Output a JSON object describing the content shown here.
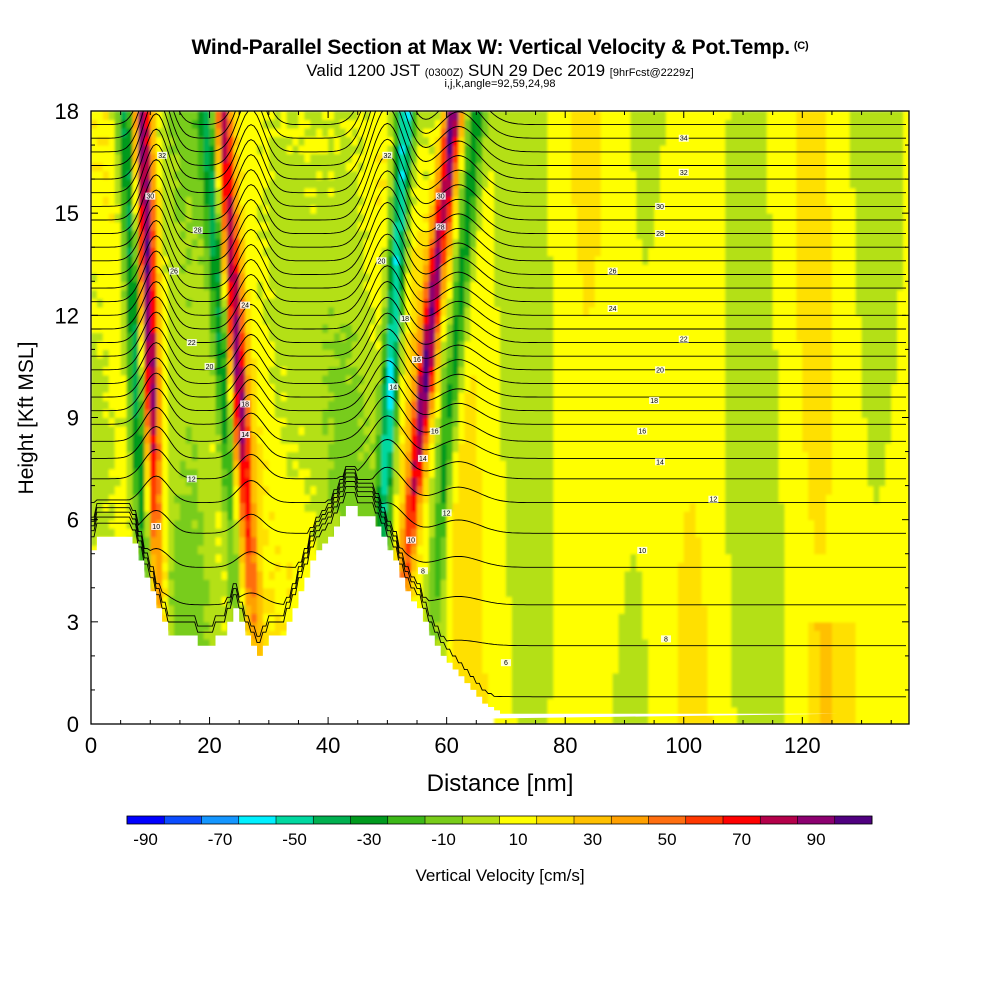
{
  "header": {
    "title": "Wind-Parallel Section at Max W: Vertical Velocity & Pot.Temp.",
    "title_mark": "(C)",
    "valid_prefix": "Valid 1200 JST",
    "valid_utc": "(0300Z)",
    "valid_date": "SUN 29 Dec 2019",
    "forecast": "[9hrFcst@2229z]",
    "params": "i,j,k,angle=92,59,24,98"
  },
  "chart_data": {
    "type": "heatmap",
    "title": "Wind-Parallel Section at Max W: Vertical Velocity & Pot.Temp.",
    "xlabel": "Distance [nm]",
    "ylabel": "Height [Kft MSL]",
    "xlim": [
      0,
      138
    ],
    "ylim": [
      0,
      18
    ],
    "x_ticks": [
      0,
      20,
      40,
      60,
      80,
      100,
      120
    ],
    "y_ticks": [
      0,
      3,
      6,
      9,
      12,
      15,
      18
    ],
    "terrain": {
      "x": [
        0,
        1,
        1,
        3,
        3,
        5,
        5,
        6,
        6,
        7,
        7,
        8,
        8,
        9,
        9,
        10,
        10,
        11,
        11,
        12,
        12,
        13,
        13,
        14,
        14,
        18,
        18,
        20,
        20,
        21,
        21,
        23,
        23,
        24,
        24,
        25,
        25,
        26,
        26,
        27,
        27,
        28,
        28,
        29,
        29,
        30,
        30,
        31,
        31,
        33,
        33,
        34,
        34,
        35,
        35,
        36,
        36,
        37,
        37,
        38,
        38,
        39,
        39,
        40,
        40,
        41,
        41,
        42,
        42,
        43,
        43,
        44,
        44,
        45,
        45,
        46,
        46,
        48,
        48,
        49,
        49,
        50,
        50,
        51,
        51,
        52,
        52,
        53,
        53,
        54,
        54,
        55,
        55,
        56,
        56,
        57,
        57,
        58,
        58,
        59,
        59,
        60,
        60,
        61,
        61,
        62,
        62,
        63,
        63,
        64,
        64,
        65,
        65,
        66,
        66,
        67,
        67,
        68,
        68,
        69,
        69,
        70,
        70,
        122,
        122,
        124,
        124,
        125,
        125,
        126,
        126,
        138
      ],
      "y": [
        5.1,
        5.1,
        5.5,
        5.5,
        5.5,
        5.5,
        5.5,
        5.5,
        5.5,
        5.5,
        5.3,
        5.3,
        4.8,
        4.8,
        4.3,
        4.3,
        3.9,
        3.9,
        3.4,
        3.4,
        3.0,
        3.0,
        2.6,
        2.6,
        2.6,
        2.6,
        2.3,
        2.3,
        2.3,
        2.3,
        2.6,
        2.6,
        3.0,
        3.0,
        3.4,
        3.4,
        3.0,
        3.0,
        2.6,
        2.6,
        2.3,
        2.3,
        2.0,
        2.0,
        2.3,
        2.3,
        2.6,
        2.6,
        2.6,
        2.6,
        3.0,
        3.0,
        3.4,
        3.4,
        3.9,
        3.9,
        4.3,
        4.3,
        4.8,
        4.8,
        5.1,
        5.1,
        5.3,
        5.3,
        5.5,
        5.5,
        5.8,
        5.8,
        6.1,
        6.1,
        6.4,
        6.4,
        6.4,
        6.4,
        6.1,
        6.1,
        6.1,
        6.1,
        5.8,
        5.8,
        5.5,
        5.5,
        5.1,
        5.1,
        4.8,
        4.8,
        4.3,
        4.3,
        3.9,
        3.9,
        3.6,
        3.6,
        3.4,
        3.4,
        3.0,
        3.0,
        2.6,
        2.6,
        2.3,
        2.3,
        2.0,
        2.0,
        1.8,
        1.8,
        1.6,
        1.6,
        1.4,
        1.4,
        1.2,
        1.2,
        1.0,
        1.0,
        0.8,
        0.8,
        0.6,
        0.6,
        0.5,
        0.5,
        0.4,
        0.4,
        0.3,
        0.3,
        0.3,
        0.3,
        0.3,
        0.3,
        0.3,
        0.3,
        0.3,
        0.3,
        0.3
      ]
    },
    "colorbar": {
      "label": "Vertical Velocity [cm/s]",
      "tick_labels": [
        "-90",
        "-70",
        "-50",
        "-30",
        "-10",
        "10",
        "30",
        "50",
        "70",
        "90"
      ],
      "colors": [
        "#0000ff",
        "#0b4cff",
        "#1496ff",
        "#00f0ff",
        "#00d8a0",
        "#00b050",
        "#009a1e",
        "#3cb818",
        "#78cc1a",
        "#b4e012",
        "#ffff00",
        "#ffe000",
        "#ffc000",
        "#ffa000",
        "#ff6e10",
        "#ff3800",
        "#ff0000",
        "#b4004a",
        "#8c0070",
        "#500080"
      ]
    },
    "updrafts": [
      {
        "x0": 12,
        "x1": 8.5,
        "sign": 1,
        "peak": 85
      },
      {
        "x0": 10,
        "x1": 6.0,
        "sign": -1,
        "peak": 60
      },
      {
        "x0": 28.5,
        "x1": 22.0,
        "sign": 1,
        "peak": 80
      },
      {
        "x0": 25.5,
        "x1": 20.0,
        "sign": -1,
        "peak": 50
      },
      {
        "x0": 50.5,
        "x1": 61.0,
        "sign": 1,
        "peak": 85
      },
      {
        "x0": 47.5,
        "x1": 53.0,
        "sign": -1,
        "peak": 75
      },
      {
        "x0": 56.0,
        "x1": 65.0,
        "sign": -1,
        "peak": 45
      }
    ],
    "isentropes": {
      "levels_kft": [
        0.8,
        2.3,
        3.5,
        4.6,
        5.6,
        6.5,
        7.2,
        7.8,
        8.3,
        8.8,
        9.2,
        9.6,
        10.0,
        10.4,
        10.8,
        11.2,
        11.6,
        12.0,
        12.4,
        12.8,
        13.2,
        13.6,
        14.0,
        14.4,
        14.8,
        15.2,
        15.6,
        16.0,
        16.4,
        16.8,
        17.2,
        17.6
      ],
      "labels": [
        {
          "text": "6",
          "x": 70,
          "y": 1.8
        },
        {
          "text": "8",
          "x": 97,
          "y": 2.5
        },
        {
          "text": "8",
          "x": 56,
          "y": 4.5
        },
        {
          "text": "10",
          "x": 54,
          "y": 5.4
        },
        {
          "text": "10",
          "x": 93,
          "y": 5.1
        },
        {
          "text": "12",
          "x": 105,
          "y": 6.6
        },
        {
          "text": "12",
          "x": 60,
          "y": 6.2
        },
        {
          "text": "14",
          "x": 96,
          "y": 7.7
        },
        {
          "text": "14",
          "x": 56,
          "y": 7.8
        },
        {
          "text": "16",
          "x": 93,
          "y": 8.6
        },
        {
          "text": "16",
          "x": 58,
          "y": 8.6
        },
        {
          "text": "18",
          "x": 95,
          "y": 9.5
        },
        {
          "text": "20",
          "x": 96,
          "y": 10.4
        },
        {
          "text": "22",
          "x": 100,
          "y": 11.3
        },
        {
          "text": "24",
          "x": 88,
          "y": 12.2
        },
        {
          "text": "26",
          "x": 88,
          "y": 13.3
        },
        {
          "text": "28",
          "x": 96,
          "y": 14.4
        },
        {
          "text": "30",
          "x": 96,
          "y": 15.2
        },
        {
          "text": "32",
          "x": 100,
          "y": 16.2
        },
        {
          "text": "34",
          "x": 100,
          "y": 17.2
        },
        {
          "text": "10",
          "x": 11,
          "y": 5.8
        },
        {
          "text": "12",
          "x": 17,
          "y": 7.2
        },
        {
          "text": "14",
          "x": 26,
          "y": 8.5
        },
        {
          "text": "18",
          "x": 26,
          "y": 9.4
        },
        {
          "text": "20",
          "x": 20,
          "y": 10.5
        },
        {
          "text": "22",
          "x": 17,
          "y": 11.2
        },
        {
          "text": "24",
          "x": 26,
          "y": 12.3
        },
        {
          "text": "26",
          "x": 14,
          "y": 13.3
        },
        {
          "text": "28",
          "x": 18,
          "y": 14.5
        },
        {
          "text": "30",
          "x": 10,
          "y": 15.5
        },
        {
          "text": "32",
          "x": 12,
          "y": 16.7
        },
        {
          "text": "14",
          "x": 51,
          "y": 9.9
        },
        {
          "text": "16",
          "x": 55,
          "y": 10.7
        },
        {
          "text": "18",
          "x": 53,
          "y": 11.9
        },
        {
          "text": "20",
          "x": 49,
          "y": 13.6
        },
        {
          "text": "28",
          "x": 59,
          "y": 14.6
        },
        {
          "text": "30",
          "x": 59,
          "y": 15.5
        },
        {
          "text": "32",
          "x": 50,
          "y": 16.7
        }
      ]
    },
    "grid": false,
    "legend": "bottom"
  }
}
